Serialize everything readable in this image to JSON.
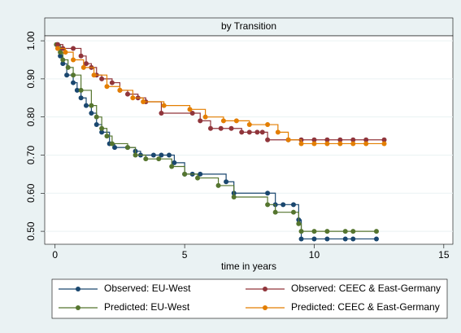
{
  "chart_data": {
    "type": "step",
    "title": "by Transition",
    "x_label": "time in years",
    "xlim": [
      -0.4,
      15.35
    ],
    "ylim": [
      0.466,
      1.013
    ],
    "xticks": [
      0,
      5,
      10,
      15
    ],
    "yticks": [
      {
        "value": 0.5,
        "label": "0.50"
      },
      {
        "value": 0.6,
        "label": "0.60"
      },
      {
        "value": 0.7,
        "label": "0.70"
      },
      {
        "value": 0.8,
        "label": "0.80"
      },
      {
        "value": 0.9,
        "label": "0.90"
      },
      {
        "value": 1.0,
        "label": "1.00"
      }
    ],
    "grid": true,
    "legend": "bottom",
    "series": [
      {
        "name": "Observed: EU-West",
        "color": "#1a476f",
        "x": [
          0.1,
          0.2,
          0.3,
          0.45,
          0.7,
          0.85,
          1.0,
          1.2,
          1.4,
          1.6,
          1.8,
          2.1,
          2.3,
          2.8,
          3.1,
          3.3,
          3.8,
          4.1,
          4.4,
          4.6,
          5.0,
          5.3,
          5.6,
          6.6,
          6.9,
          8.2,
          8.5,
          8.8,
          9.2,
          9.4,
          9.5,
          10.0,
          10.5,
          11.2,
          11.5,
          12.4
        ],
        "values": [
          0.99,
          0.96,
          0.94,
          0.91,
          0.89,
          0.87,
          0.85,
          0.83,
          0.81,
          0.78,
          0.76,
          0.73,
          0.72,
          0.72,
          0.71,
          0.7,
          0.7,
          0.7,
          0.7,
          0.68,
          0.65,
          0.65,
          0.65,
          0.63,
          0.6,
          0.6,
          0.57,
          0.57,
          0.57,
          0.53,
          0.48,
          0.48,
          0.48,
          0.48,
          0.48,
          0.48
        ]
      },
      {
        "name": "Observed: CEEC & East-Germany",
        "color": "#90353b",
        "x": [
          0.1,
          0.3,
          0.7,
          1.0,
          1.2,
          1.4,
          1.6,
          1.8,
          2.2,
          2.5,
          2.8,
          3.2,
          3.5,
          4.1,
          5.3,
          5.6,
          6.0,
          6.4,
          6.8,
          7.2,
          7.5,
          7.8,
          8.0,
          8.2,
          9.0,
          9.5,
          10.0,
          10.5,
          11.0,
          11.5,
          12.0,
          12.7
        ],
        "values": [
          0.99,
          0.98,
          0.98,
          0.96,
          0.94,
          0.93,
          0.91,
          0.9,
          0.89,
          0.87,
          0.86,
          0.85,
          0.84,
          0.81,
          0.81,
          0.79,
          0.77,
          0.77,
          0.77,
          0.76,
          0.76,
          0.76,
          0.76,
          0.74,
          0.74,
          0.74,
          0.74,
          0.74,
          0.74,
          0.74,
          0.74,
          0.74
        ]
      },
      {
        "name": "Predicted: EU-West",
        "color": "#55752f",
        "x": [
          0.05,
          0.2,
          0.3,
          0.5,
          0.7,
          1.0,
          1.4,
          1.6,
          1.8,
          2.0,
          2.2,
          2.8,
          3.1,
          3.5,
          4.0,
          4.5,
          5.0,
          5.5,
          6.3,
          6.9,
          8.2,
          8.5,
          9.2,
          9.4,
          9.5,
          10.0,
          10.5,
          11.2,
          11.5,
          12.4
        ],
        "values": [
          0.99,
          0.97,
          0.95,
          0.93,
          0.91,
          0.87,
          0.83,
          0.8,
          0.77,
          0.75,
          0.73,
          0.72,
          0.7,
          0.69,
          0.69,
          0.67,
          0.65,
          0.64,
          0.62,
          0.59,
          0.57,
          0.55,
          0.55,
          0.52,
          0.5,
          0.5,
          0.5,
          0.5,
          0.5,
          0.5
        ]
      },
      {
        "name": "Predicted: CEEC & East-Germany",
        "color": "#e37e00",
        "x": [
          0.1,
          0.4,
          0.7,
          1.1,
          1.5,
          2.0,
          2.5,
          3.0,
          3.4,
          4.2,
          5.2,
          5.8,
          6.5,
          7.0,
          7.5,
          8.2,
          8.6,
          9.0,
          9.5,
          10.0,
          10.5,
          11.0,
          11.5,
          12.0,
          12.7
        ],
        "values": [
          0.98,
          0.97,
          0.95,
          0.93,
          0.91,
          0.88,
          0.87,
          0.85,
          0.84,
          0.83,
          0.82,
          0.8,
          0.79,
          0.79,
          0.78,
          0.78,
          0.76,
          0.74,
          0.73,
          0.73,
          0.73,
          0.73,
          0.73,
          0.73,
          0.73
        ]
      }
    ]
  }
}
